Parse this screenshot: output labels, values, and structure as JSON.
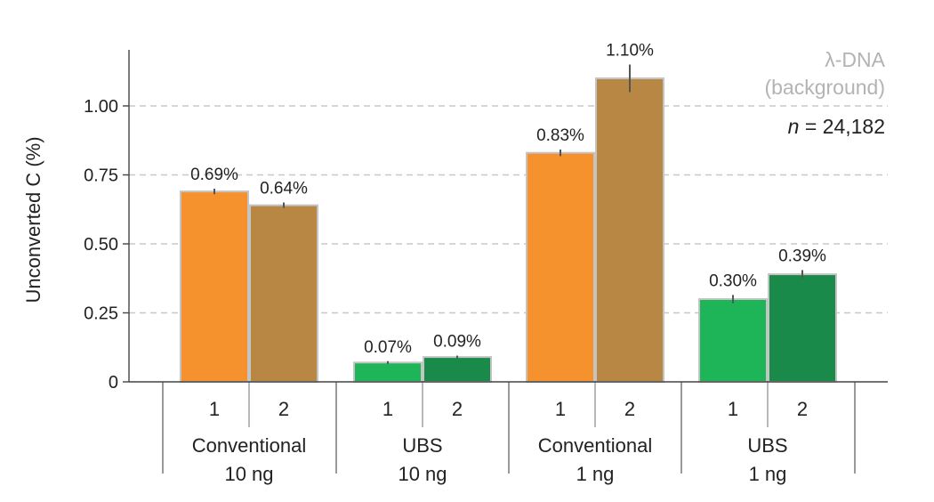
{
  "chart_data": {
    "type": "bar",
    "ylabel": "Unconverted C (%)",
    "ylim": [
      0,
      1.25
    ],
    "yticks": [
      0,
      0.25,
      0.5,
      0.75,
      1.0
    ],
    "ytick_labels": [
      "0",
      "0.25",
      "0.50",
      "0.75",
      "1.00"
    ],
    "grid": "horizontal dashed",
    "groups": [
      {
        "label_line1": "Conventional",
        "label_line2": "10 ng",
        "bars": [
          {
            "sub": "1",
            "value": 0.69,
            "label": "0.69%",
            "err": 0.01,
            "color": "#f5922e"
          },
          {
            "sub": "2",
            "value": 0.64,
            "label": "0.64%",
            "err": 0.01,
            "color": "#b98744"
          }
        ]
      },
      {
        "label_line1": "UBS",
        "label_line2": "10 ng",
        "bars": [
          {
            "sub": "1",
            "value": 0.07,
            "label": "0.07%",
            "err": 0.005,
            "color": "#1db557"
          },
          {
            "sub": "2",
            "value": 0.09,
            "label": "0.09%",
            "err": 0.005,
            "color": "#1a8a4a"
          }
        ]
      },
      {
        "label_line1": "Conventional",
        "label_line2": "1 ng",
        "bars": [
          {
            "sub": "1",
            "value": 0.83,
            "label": "0.83%",
            "err": 0.012,
            "color": "#f5922e"
          },
          {
            "sub": "2",
            "value": 1.1,
            "label": "1.10%",
            "err": 0.05,
            "color": "#b98744"
          }
        ]
      },
      {
        "label_line1": "UBS",
        "label_line2": "1 ng",
        "bars": [
          {
            "sub": "1",
            "value": 0.3,
            "label": "0.30%",
            "err": 0.015,
            "color": "#1db557"
          },
          {
            "sub": "2",
            "value": 0.39,
            "label": "0.39%",
            "err": 0.015,
            "color": "#1a8a4a"
          }
        ]
      }
    ],
    "legend": {
      "position": "top-right",
      "line1": "λ-DNA",
      "line2": "(background)",
      "n_prefix": "n",
      "n_value": " = 24,182"
    }
  }
}
